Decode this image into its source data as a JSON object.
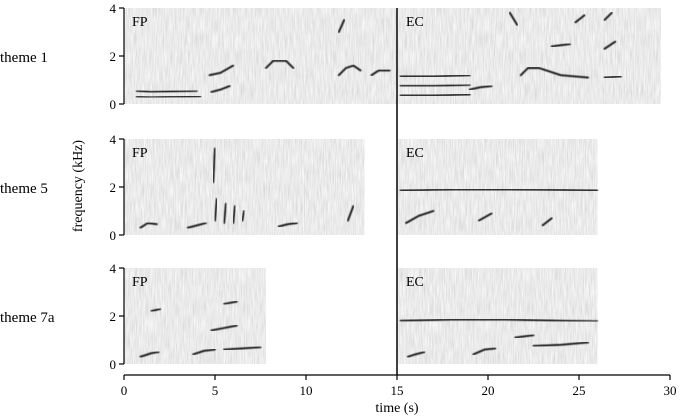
{
  "chart_data": {
    "type": "heatmap",
    "xlabel": "time (s)",
    "ylabel": "frequency (kHz)",
    "xlim": [
      0,
      30
    ],
    "ylim": [
      0,
      4
    ],
    "x_ticks": [
      "0",
      "5",
      "10",
      "15",
      "20",
      "25",
      "30"
    ],
    "y_ticks": [
      "0",
      "2",
      "4"
    ],
    "divider_time": 15,
    "rows": [
      {
        "label": "theme 1",
        "panels": [
          {
            "label": "FP",
            "start": 0,
            "end": 15,
            "traces": [
              [
                [
                  0.7,
                  0.3
                ],
                [
                  1.5,
                  0.28
                ],
                [
                  2.5,
                  0.3
                ],
                [
                  4.2,
                  0.32
                ]
              ],
              [
                [
                  0.7,
                  0.55
                ],
                [
                  1.5,
                  0.5
                ],
                [
                  2.5,
                  0.52
                ],
                [
                  4.0,
                  0.55
                ]
              ],
              [
                [
                  4.8,
                  0.5
                ],
                [
                  5.3,
                  0.6
                ],
                [
                  5.8,
                  0.75
                ]
              ],
              [
                [
                  4.7,
                  1.2
                ],
                [
                  5.3,
                  1.3
                ],
                [
                  6.0,
                  1.6
                ]
              ],
              [
                [
                  7.8,
                  1.5
                ],
                [
                  8.2,
                  1.8
                ],
                [
                  8.9,
                  1.8
                ],
                [
                  9.3,
                  1.5
                ]
              ],
              [
                [
                  11.8,
                  1.2
                ],
                [
                  12.2,
                  1.5
                ],
                [
                  12.6,
                  1.6
                ],
                [
                  13.0,
                  1.4
                ]
              ],
              [
                [
                  13.6,
                  1.2
                ],
                [
                  14.0,
                  1.4
                ],
                [
                  14.6,
                  1.4
                ]
              ],
              [
                [
                  11.8,
                  3.0
                ],
                [
                  12.1,
                  3.5
                ]
              ]
            ]
          },
          {
            "label": "EC",
            "start": 15,
            "end": 29.5,
            "traces": [
              [
                [
                  15.2,
                  0.35
                ],
                [
                  17.0,
                  0.35
                ],
                [
                  19.0,
                  0.4
                ]
              ],
              [
                [
                  15.2,
                  0.75
                ],
                [
                  17.0,
                  0.75
                ],
                [
                  19.0,
                  0.8
                ]
              ],
              [
                [
                  15.2,
                  1.15
                ],
                [
                  17.0,
                  1.15
                ],
                [
                  19.0,
                  1.2
                ]
              ],
              [
                [
                  19.0,
                  0.6
                ],
                [
                  19.6,
                  0.7
                ],
                [
                  20.2,
                  0.75
                ]
              ],
              [
                [
                  21.8,
                  1.2
                ],
                [
                  22.2,
                  1.5
                ],
                [
                  22.8,
                  1.5
                ],
                [
                  24.0,
                  1.2
                ],
                [
                  25.5,
                  1.1
                ]
              ],
              [
                [
                  26.4,
                  1.1
                ],
                [
                  27.3,
                  1.15
                ]
              ],
              [
                [
                  23.5,
                  2.4
                ],
                [
                  24.5,
                  2.5
                ]
              ],
              [
                [
                  24.8,
                  3.4
                ],
                [
                  25.3,
                  3.7
                ]
              ],
              [
                [
                  26.4,
                  2.3
                ],
                [
                  27.0,
                  2.6
                ]
              ],
              [
                [
                  26.4,
                  3.5
                ],
                [
                  26.8,
                  3.8
                ]
              ],
              [
                [
                  21.2,
                  3.8
                ],
                [
                  21.6,
                  3.3
                ]
              ]
            ]
          }
        ]
      },
      {
        "label": "theme 5",
        "panels": [
          {
            "label": "FP",
            "start": 0,
            "end": 13.2,
            "traces": [
              [
                [
                  0.9,
                  0.3
                ],
                [
                  1.3,
                  0.5
                ],
                [
                  1.8,
                  0.45
                ]
              ],
              [
                [
                  3.5,
                  0.3
                ],
                [
                  4.0,
                  0.4
                ],
                [
                  4.5,
                  0.5
                ]
              ],
              [
                [
                  8.5,
                  0.35
                ],
                [
                  9.0,
                  0.45
                ],
                [
                  9.5,
                  0.5
                ]
              ],
              [
                [
                  12.3,
                  0.6
                ],
                [
                  12.6,
                  1.2
                ]
              ],
              [
                [
                  5.0,
                  0.6
                ],
                [
                  5.1,
                  1.5
                ]
              ],
              [
                [
                  5.5,
                  0.5
                ],
                [
                  5.6,
                  1.3
                ]
              ],
              [
                [
                  6.0,
                  0.5
                ],
                [
                  6.1,
                  1.2
                ]
              ],
              [
                [
                  6.5,
                  0.6
                ],
                [
                  6.6,
                  1.0
                ]
              ],
              [
                [
                  4.9,
                  2.2
                ],
                [
                  5.0,
                  3.6
                ]
              ]
            ]
          },
          {
            "label": "EC",
            "start": 15,
            "end": 26,
            "traces": [
              [
                [
                  15.2,
                  1.85
                ],
                [
                  18,
                  1.9
                ],
                [
                  21,
                  1.9
                ],
                [
                  24,
                  1.88
                ],
                [
                  26,
                  1.85
                ]
              ],
              [
                [
                  15.5,
                  0.5
                ],
                [
                  16.2,
                  0.8
                ],
                [
                  17.0,
                  1.0
                ]
              ],
              [
                [
                  19.5,
                  0.6
                ],
                [
                  20.2,
                  0.9
                ]
              ],
              [
                [
                  23.0,
                  0.4
                ],
                [
                  23.5,
                  0.7
                ]
              ]
            ]
          }
        ]
      },
      {
        "label": "theme 7a",
        "panels": [
          {
            "label": "FP",
            "start": 0,
            "end": 7.8,
            "traces": [
              [
                [
                  0.9,
                  0.3
                ],
                [
                  1.5,
                  0.45
                ],
                [
                  1.9,
                  0.5
                ]
              ],
              [
                [
                  3.8,
                  0.4
                ],
                [
                  4.4,
                  0.55
                ],
                [
                  5.0,
                  0.6
                ]
              ],
              [
                [
                  5.5,
                  0.6
                ],
                [
                  6.5,
                  0.65
                ],
                [
                  7.5,
                  0.7
                ]
              ],
              [
                [
                  4.8,
                  1.4
                ],
                [
                  5.5,
                  1.5
                ],
                [
                  6.2,
                  1.6
                ]
              ],
              [
                [
                  5.5,
                  2.5
                ],
                [
                  6.2,
                  2.6
                ]
              ],
              [
                [
                  1.5,
                  2.2
                ],
                [
                  2.0,
                  2.3
                ]
              ]
            ]
          },
          {
            "label": "EC",
            "start": 15,
            "end": 26,
            "traces": [
              [
                [
                  15.2,
                  1.8
                ],
                [
                  18,
                  1.85
                ],
                [
                  21,
                  1.85
                ],
                [
                  24,
                  1.8
                ],
                [
                  26,
                  1.78
                ]
              ],
              [
                [
                  15.6,
                  0.3
                ],
                [
                  16.0,
                  0.4
                ],
                [
                  16.5,
                  0.5
                ]
              ],
              [
                [
                  19.2,
                  0.4
                ],
                [
                  19.8,
                  0.6
                ],
                [
                  20.4,
                  0.65
                ]
              ],
              [
                [
                  22.5,
                  0.75
                ],
                [
                  24.0,
                  0.8
                ],
                [
                  25.5,
                  0.9
                ]
              ],
              [
                [
                  21.5,
                  1.1
                ],
                [
                  22.5,
                  1.2
                ]
              ]
            ]
          }
        ]
      }
    ]
  }
}
